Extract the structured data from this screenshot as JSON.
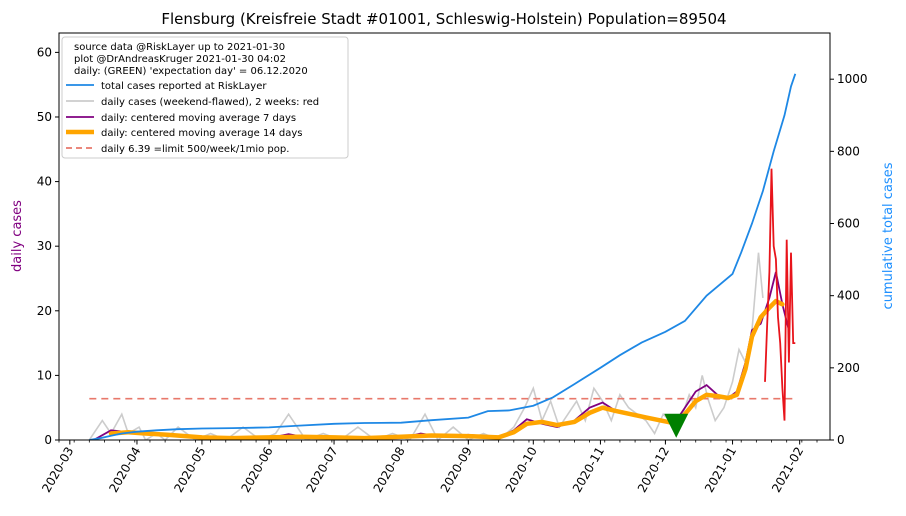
{
  "chart_data": {
    "type": "line",
    "title": "Flensburg (Kreisfreie Stadt #01001, Schleswig-Holstein) Population=89504",
    "ylabel_left": "daily cases",
    "ylabel_right": "cumulative total cases",
    "colors": {
      "left_axis_label": "#800080",
      "right_axis_label": "#1e90ff",
      "total": "#1e88e5",
      "daily_raw": "#cccccc",
      "daily_recent": "#e8141b",
      "ma7": "#800080",
      "ma14": "#ffa500",
      "limit": "#e8786b",
      "expectation_marker": "#008000"
    },
    "x_range": [
      "2020-02-25",
      "2021-02-15"
    ],
    "x_ticks": [
      "2020-03",
      "2020-04",
      "2020-05",
      "2020-06",
      "2020-07",
      "2020-08",
      "2020-09",
      "2020-10",
      "2020-11",
      "2020-12",
      "2021-01",
      "2021-02"
    ],
    "y_left_range": [
      0,
      63
    ],
    "y_left_ticks": [
      "0",
      "10",
      "20",
      "30",
      "40",
      "50",
      "60"
    ],
    "y_right_range": [
      0,
      1128
    ],
    "y_right_ticks": [
      "0",
      "200",
      "400",
      "600",
      "800",
      "1000"
    ],
    "legend": {
      "placement": "top-left",
      "info_lines": [
        "source data @RiskLayer up to 2021-01-30",
        "plot @DrAndreasKruger 2021-01-30 04:02",
        "daily: (GREEN) 'expectation day' = 06.12.2020"
      ],
      "entries": [
        "total cases reported at RiskLayer",
        "daily cases (weekend-flawed), 2 weeks: red",
        "daily: centered moving average 7 days",
        "daily: centered moving average 14 days",
        "daily 6.39 =limit 500/week/1mio pop."
      ]
    },
    "limit_value": 6.39,
    "expectation_day": "2020-12-06",
    "expectation_value": 2.2,
    "series_total": {
      "x": [
        "2020-03-10",
        "2020-03-15",
        "2020-03-20",
        "2020-03-25",
        "2020-04-01",
        "2020-04-10",
        "2020-04-20",
        "2020-05-01",
        "2020-05-15",
        "2020-06-01",
        "2020-06-15",
        "2020-07-01",
        "2020-07-15",
        "2020-08-01",
        "2020-08-15",
        "2020-09-01",
        "2020-09-10",
        "2020-09-20",
        "2020-10-01",
        "2020-10-10",
        "2020-10-20",
        "2020-11-01",
        "2020-11-10",
        "2020-11-20",
        "2020-12-01",
        "2020-12-10",
        "2020-12-20",
        "2021-01-01",
        "2021-01-05",
        "2021-01-10",
        "2021-01-15",
        "2021-01-20",
        "2021-01-25",
        "2021-01-28",
        "2021-01-30"
      ],
      "y": [
        0,
        5,
        12,
        18,
        23,
        27,
        30,
        32,
        33,
        35,
        40,
        45,
        47,
        48,
        55,
        62,
        80,
        82,
        95,
        118,
        155,
        200,
        235,
        270,
        300,
        330,
        400,
        460,
        520,
        600,
        690,
        800,
        900,
        980,
        1015
      ]
    },
    "series_raw": {
      "x": [
        "2020-03-10",
        "2020-03-16",
        "2020-03-20",
        "2020-03-25",
        "2020-03-28",
        "2020-04-02",
        "2020-04-05",
        "2020-04-10",
        "2020-04-14",
        "2020-04-20",
        "2020-04-28",
        "2020-05-05",
        "2020-05-12",
        "2020-05-20",
        "2020-05-28",
        "2020-06-04",
        "2020-06-10",
        "2020-06-18",
        "2020-06-26",
        "2020-07-04",
        "2020-07-12",
        "2020-07-20",
        "2020-07-28",
        "2020-08-05",
        "2020-08-12",
        "2020-08-18",
        "2020-08-25",
        "2020-09-01",
        "2020-09-08",
        "2020-09-15",
        "2020-09-22",
        "2020-09-27",
        "2020-10-01",
        "2020-10-05",
        "2020-10-09",
        "2020-10-13",
        "2020-10-17",
        "2020-10-21",
        "2020-10-25",
        "2020-10-29",
        "2020-11-02",
        "2020-11-06",
        "2020-11-10",
        "2020-11-14",
        "2020-11-18",
        "2020-11-22",
        "2020-11-26",
        "2020-11-30",
        "2020-12-03",
        "2020-12-06",
        "2020-12-09",
        "2020-12-12",
        "2020-12-15",
        "2020-12-18",
        "2020-12-21",
        "2020-12-24",
        "2020-12-28",
        "2021-01-01",
        "2021-01-04",
        "2021-01-07",
        "2021-01-10",
        "2021-01-13",
        "2021-01-15"
      ],
      "y": [
        0,
        3,
        1,
        4,
        1,
        2,
        0,
        1,
        0,
        2,
        0,
        1,
        0,
        2,
        0,
        1,
        4,
        0,
        1,
        0,
        2,
        0,
        1,
        0,
        4,
        0,
        2,
        0,
        1,
        0,
        2,
        5,
        8,
        3,
        6,
        2,
        4,
        6,
        3,
        8,
        6,
        3,
        7,
        5,
        4,
        3,
        1,
        4,
        3,
        2,
        4,
        7,
        5,
        10,
        6,
        3,
        5,
        9,
        14,
        12,
        17,
        29,
        22
      ]
    },
    "series_recent": {
      "x": [
        "2021-01-16",
        "2021-01-17",
        "2021-01-18",
        "2021-01-19",
        "2021-01-20",
        "2021-01-21",
        "2021-01-22",
        "2021-01-23",
        "2021-01-24",
        "2021-01-25",
        "2021-01-26",
        "2021-01-27",
        "2021-01-28",
        "2021-01-29",
        "2021-01-30"
      ],
      "y": [
        9,
        18,
        26,
        42,
        30,
        28,
        19,
        15,
        8,
        3,
        31,
        12,
        29,
        15,
        15
      ]
    },
    "series_ma7": {
      "x": [
        "2020-03-12",
        "2020-03-20",
        "2020-03-28",
        "2020-04-05",
        "2020-04-15",
        "2020-05-01",
        "2020-05-15",
        "2020-06-01",
        "2020-06-10",
        "2020-06-20",
        "2020-07-01",
        "2020-07-15",
        "2020-08-01",
        "2020-08-10",
        "2020-08-20",
        "2020-09-01",
        "2020-09-15",
        "2020-09-22",
        "2020-09-28",
        "2020-10-05",
        "2020-10-12",
        "2020-10-20",
        "2020-10-27",
        "2020-11-02",
        "2020-11-08",
        "2020-11-15",
        "2020-11-22",
        "2020-11-29",
        "2020-12-05",
        "2020-12-10",
        "2020-12-15",
        "2020-12-20",
        "2020-12-25",
        "2020-12-30",
        "2021-01-03",
        "2021-01-07",
        "2021-01-10",
        "2021-01-14",
        "2021-01-18",
        "2021-01-21",
        "2021-01-24",
        "2021-01-27"
      ],
      "y": [
        0,
        1.5,
        1.2,
        1.0,
        0.8,
        0.3,
        0.2,
        0.3,
        0.9,
        0.3,
        0.3,
        0.2,
        0.3,
        1.0,
        0.5,
        0.8,
        0.4,
        1.5,
        3.2,
        2.5,
        2.0,
        3.0,
        5.0,
        5.8,
        4.5,
        4.0,
        3.6,
        3.0,
        2.5,
        5.0,
        7.5,
        8.5,
        7.0,
        6.5,
        7.5,
        12,
        17,
        18,
        22,
        26,
        21,
        17
      ]
    },
    "series_ma14": {
      "x": [
        "2020-03-20",
        "2020-03-28",
        "2020-04-05",
        "2020-04-15",
        "2020-05-01",
        "2020-05-15",
        "2020-06-01",
        "2020-06-15",
        "2020-07-01",
        "2020-07-15",
        "2020-08-01",
        "2020-08-15",
        "2020-09-01",
        "2020-09-15",
        "2020-09-22",
        "2020-09-28",
        "2020-10-05",
        "2020-10-12",
        "2020-10-20",
        "2020-10-27",
        "2020-11-02",
        "2020-11-08",
        "2020-11-15",
        "2020-11-22",
        "2020-11-29",
        "2020-12-05",
        "2020-12-10",
        "2020-12-15",
        "2020-12-20",
        "2020-12-25",
        "2020-12-30",
        "2021-01-03",
        "2021-01-07",
        "2021-01-10",
        "2021-01-14",
        "2021-01-18",
        "2021-01-21",
        "2021-01-24"
      ],
      "y": [
        1.0,
        1.2,
        1.0,
        0.8,
        0.4,
        0.3,
        0.4,
        0.5,
        0.4,
        0.3,
        0.5,
        0.7,
        0.6,
        0.4,
        1.2,
        2.5,
        2.8,
        2.3,
        2.8,
        4.2,
        5.0,
        4.5,
        4.0,
        3.5,
        3.0,
        2.6,
        4.0,
        6.0,
        7.0,
        6.8,
        6.5,
        7.0,
        11,
        16,
        19,
        20.5,
        21.5,
        21
      ]
    }
  }
}
